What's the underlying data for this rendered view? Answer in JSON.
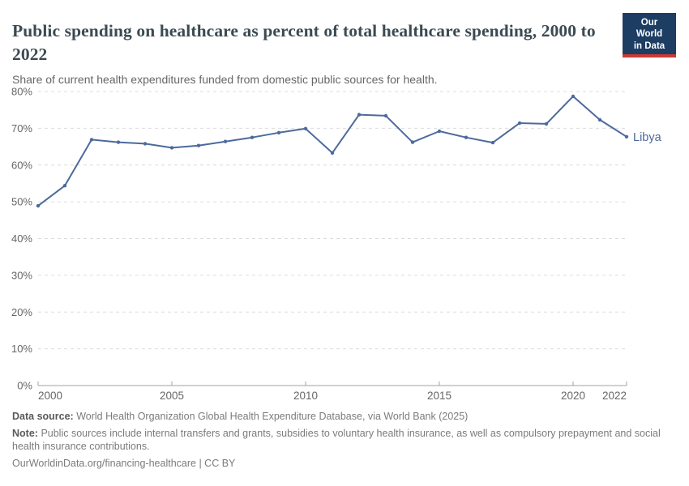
{
  "header": {
    "title": "Public spending on healthcare as percent of total healthcare spending, 2000 to 2022",
    "subtitle": "Share of current health expenditures funded from domestic public sources for health.",
    "logo": {
      "line1": "Our World",
      "line2": "in Data"
    }
  },
  "chart_data": {
    "type": "line",
    "title": "Public spending on healthcare as percent of total healthcare spending, 2000 to 2022",
    "xlabel": "",
    "ylabel": "",
    "xlim": [
      2000,
      2022
    ],
    "ylim": [
      0,
      80
    ],
    "grid": "horizontal-dashed",
    "legend_position": "end-of-line",
    "x": [
      2000,
      2001,
      2002,
      2003,
      2004,
      2005,
      2006,
      2007,
      2008,
      2009,
      2010,
      2011,
      2012,
      2013,
      2014,
      2015,
      2016,
      2017,
      2018,
      2019,
      2020,
      2021,
      2022
    ],
    "series": [
      {
        "name": "Libya",
        "values": [
          48.9,
          54.4,
          66.9,
          66.2,
          65.8,
          64.7,
          65.3,
          66.4,
          67.5,
          68.8,
          69.9,
          63.3,
          73.7,
          73.4,
          66.2,
          69.2,
          67.5,
          66.1,
          71.4,
          71.2,
          78.7,
          72.3,
          67.7
        ]
      }
    ],
    "x_ticks": [
      {
        "value": 2000,
        "label": "2000"
      },
      {
        "value": 2005,
        "label": "2005"
      },
      {
        "value": 2010,
        "label": "2010"
      },
      {
        "value": 2015,
        "label": "2015"
      },
      {
        "value": 2020,
        "label": "2020"
      },
      {
        "value": 2022,
        "label": "2022"
      }
    ],
    "y_ticks": [
      {
        "value": 0,
        "label": "0%"
      },
      {
        "value": 10,
        "label": "10%"
      },
      {
        "value": 20,
        "label": "20%"
      },
      {
        "value": 30,
        "label": "30%"
      },
      {
        "value": 40,
        "label": "40%"
      },
      {
        "value": 50,
        "label": "50%"
      },
      {
        "value": 60,
        "label": "60%"
      },
      {
        "value": 70,
        "label": "70%"
      },
      {
        "value": 80,
        "label": "80%"
      }
    ],
    "end_label": "Libya"
  },
  "colors": {
    "line": "#4c6a9c",
    "end_label": "#4c6a9c",
    "gridline": "#dcdcdc",
    "axis": "#a3a3a3",
    "tick_text": "#666666",
    "logo_bg": "#1d3d63",
    "logo_red": "#cb3a32"
  },
  "footer": {
    "data_source_label": "Data source:",
    "data_source": "World Health Organization Global Health Expenditure Database, via World Bank (2025)",
    "note_label": "Note:",
    "note": "Public sources include internal transfers and grants, subsidies to voluntary health insurance, as well as compulsory prepayment and social health insurance contributions.",
    "link": "OurWorldinData.org/financing-healthcare | CC BY"
  }
}
